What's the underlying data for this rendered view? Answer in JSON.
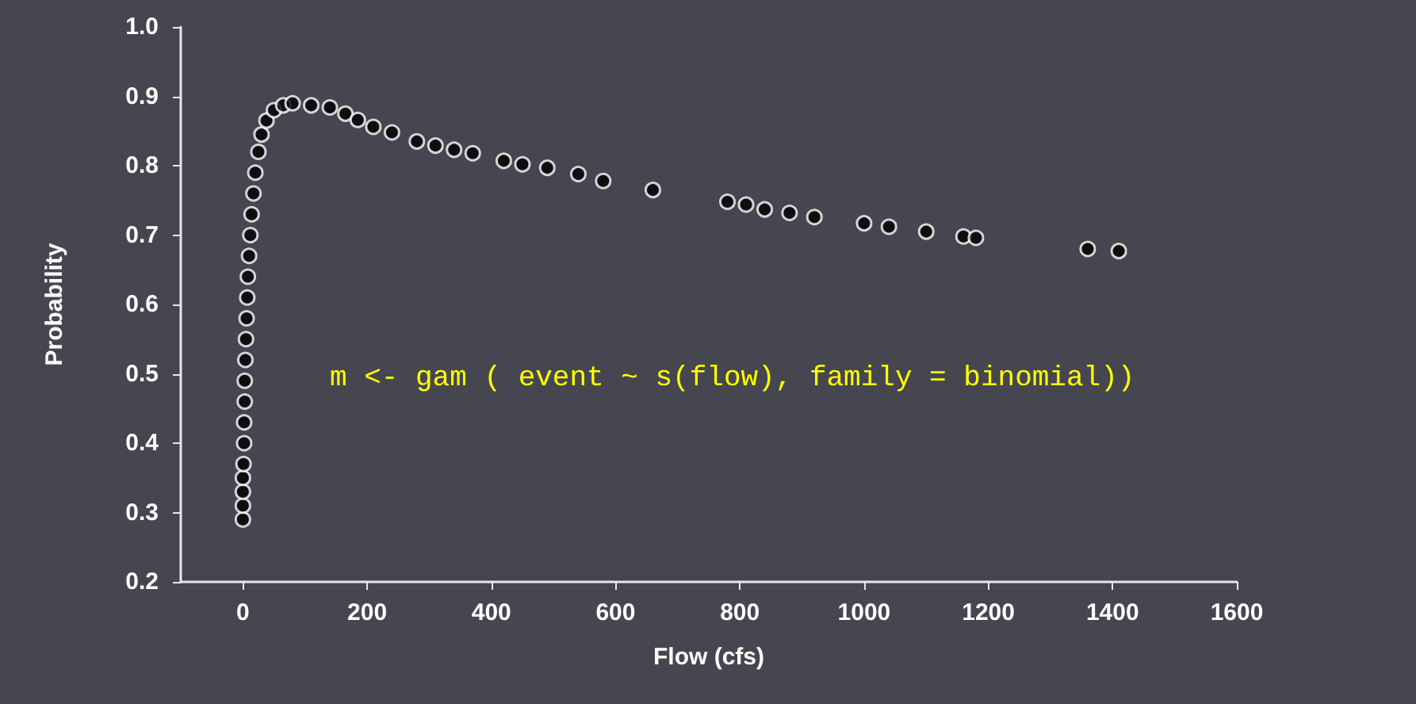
{
  "chart_data": {
    "type": "scatter",
    "xlabel": "Flow (cfs)",
    "ylabel": "Probability",
    "x": [
      0,
      0,
      0,
      0,
      1,
      2,
      2,
      3,
      3,
      4,
      5,
      6,
      7,
      8,
      10,
      12,
      14,
      17,
      20,
      25,
      30,
      38,
      50,
      65,
      80,
      110,
      140,
      165,
      185,
      210,
      240,
      280,
      310,
      340,
      370,
      420,
      450,
      490,
      540,
      580,
      660,
      780,
      810,
      840,
      880,
      920,
      1000,
      1040,
      1100,
      1160,
      1180,
      1360,
      1410
    ],
    "values": [
      0.29,
      0.31,
      0.33,
      0.35,
      0.37,
      0.4,
      0.43,
      0.46,
      0.49,
      0.52,
      0.55,
      0.58,
      0.61,
      0.64,
      0.67,
      0.7,
      0.73,
      0.76,
      0.79,
      0.82,
      0.845,
      0.865,
      0.88,
      0.887,
      0.89,
      0.887,
      0.884,
      0.875,
      0.866,
      0.856,
      0.848,
      0.835,
      0.829,
      0.823,
      0.818,
      0.807,
      0.802,
      0.797,
      0.788,
      0.778,
      0.765,
      0.748,
      0.744,
      0.737,
      0.732,
      0.726,
      0.717,
      0.712,
      0.705,
      0.698,
      0.696,
      0.68,
      0.677
    ],
    "color": "#000000",
    "marker": "circle",
    "xlim": [
      -100,
      1600
    ],
    "xticks": [
      0,
      200,
      400,
      600,
      800,
      1000,
      1200,
      1400,
      1600
    ],
    "ylim": [
      0.2,
      1.0
    ],
    "yticks": [
      0.2,
      0.3,
      0.4,
      0.5,
      0.6,
      0.7,
      0.8,
      0.9,
      {
        "value": 1.0,
        "label": "1.0"
      }
    ],
    "grid": false,
    "annotations": [
      "m <- gam ( event ~ s(flow), family = binomial))"
    ]
  }
}
